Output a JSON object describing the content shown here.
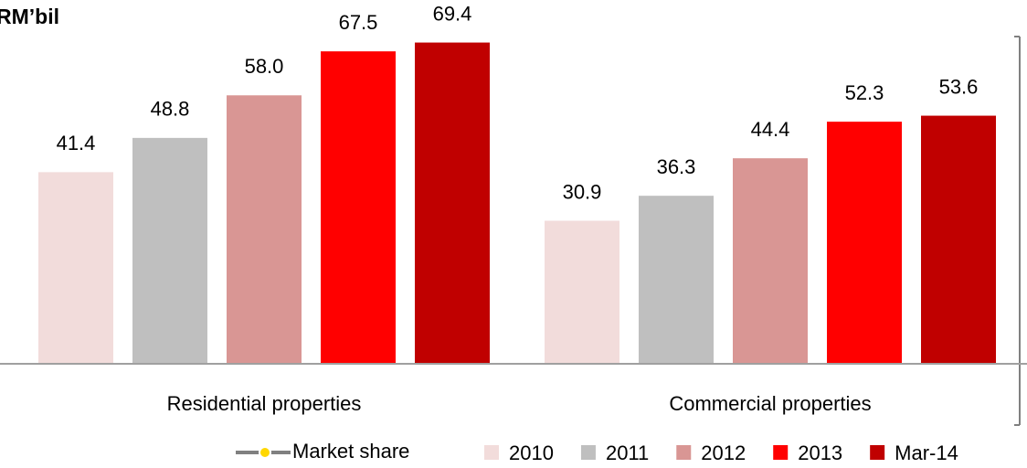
{
  "chart_data": {
    "type": "bar",
    "title": "RM’bil",
    "categories": [
      "Residential properties",
      "Commercial properties"
    ],
    "ylim": [
      0,
      78
    ],
    "series": [
      {
        "name": "Market share",
        "type": "line",
        "color": "#808080",
        "marker_color": "#ffd700",
        "values": [
          null,
          null
        ]
      },
      {
        "name": "2010",
        "color": "#f2dcdb",
        "values": [
          41.4,
          30.9
        ],
        "value_labels": [
          "41.4",
          "30.9"
        ]
      },
      {
        "name": "2011",
        "color": "#bfbfbf",
        "values": [
          48.8,
          36.3
        ],
        "value_labels": [
          "48.8",
          "36.3"
        ]
      },
      {
        "name": "2012",
        "color": "#d99694",
        "values": [
          58.0,
          44.4
        ],
        "value_labels": [
          "58.0",
          "44.4"
        ]
      },
      {
        "name": "2013",
        "color": "#ff0000",
        "values": [
          67.5,
          52.3
        ],
        "value_labels": [
          "67.5",
          "52.3"
        ]
      },
      {
        "name": "Mar-14",
        "color": "#c00000",
        "values": [
          69.4,
          53.6
        ],
        "value_labels": [
          "69.4",
          "53.6"
        ]
      }
    ]
  }
}
